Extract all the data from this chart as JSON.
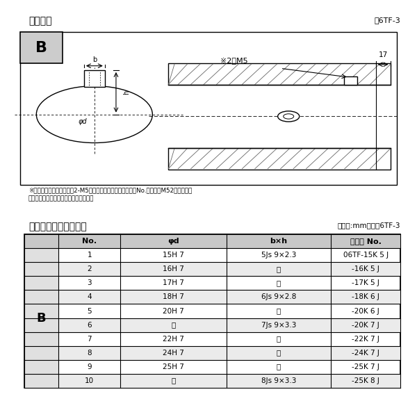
{
  "title_top": "軸穴形状",
  "fig_label_top": "図6TF-3",
  "section_label": "B",
  "note_line1": "※セットボルト用タップ（2-M5）が必要な場合は右記コードNo.の末尾にM52を付ける。",
  "note_line2": "（セットボルトは付属されています。）",
  "table_title": "軸穴形状コード一覧表",
  "table_unit": "（単位:mm）　表6TF-3",
  "dim_label_17": "17",
  "dim_label_2M5": "※2－M5",
  "dim_b": "b",
  "dim_h": "h",
  "dim_phid": "φd",
  "col_headers": [
    "No.",
    "φd",
    "b×h",
    "コード No."
  ],
  "col_B_label": "B",
  "rows": [
    [
      "1",
      "15H 7",
      "5Js 9×2.3",
      "06TF-15K 5 J"
    ],
    [
      "2",
      "16H 7",
      "〃",
      "-16K 5 J"
    ],
    [
      "3",
      "17H 7",
      "〃",
      "-17K 5 J"
    ],
    [
      "4",
      "18H 7",
      "6Js 9×2.8",
      "-18K 6 J"
    ],
    [
      "5",
      "20H 7",
      "〃",
      "-20K 6 J"
    ],
    [
      "6",
      "〃",
      "7Js 9×3.3",
      "-20K 7 J"
    ],
    [
      "7",
      "22H 7",
      "〃",
      "-22K 7 J"
    ],
    [
      "8",
      "24H 7",
      "〃",
      "-24K 7 J"
    ],
    [
      "9",
      "25H 7",
      "〃",
      "-25K 7 J"
    ],
    [
      "10",
      "〃",
      "8Js 9×3.3",
      "-25K 8 J"
    ]
  ],
  "bg_color": "#ffffff",
  "border_color": "#000000",
  "header_bg": "#c8c8c8",
  "hatch_color": "#555555"
}
